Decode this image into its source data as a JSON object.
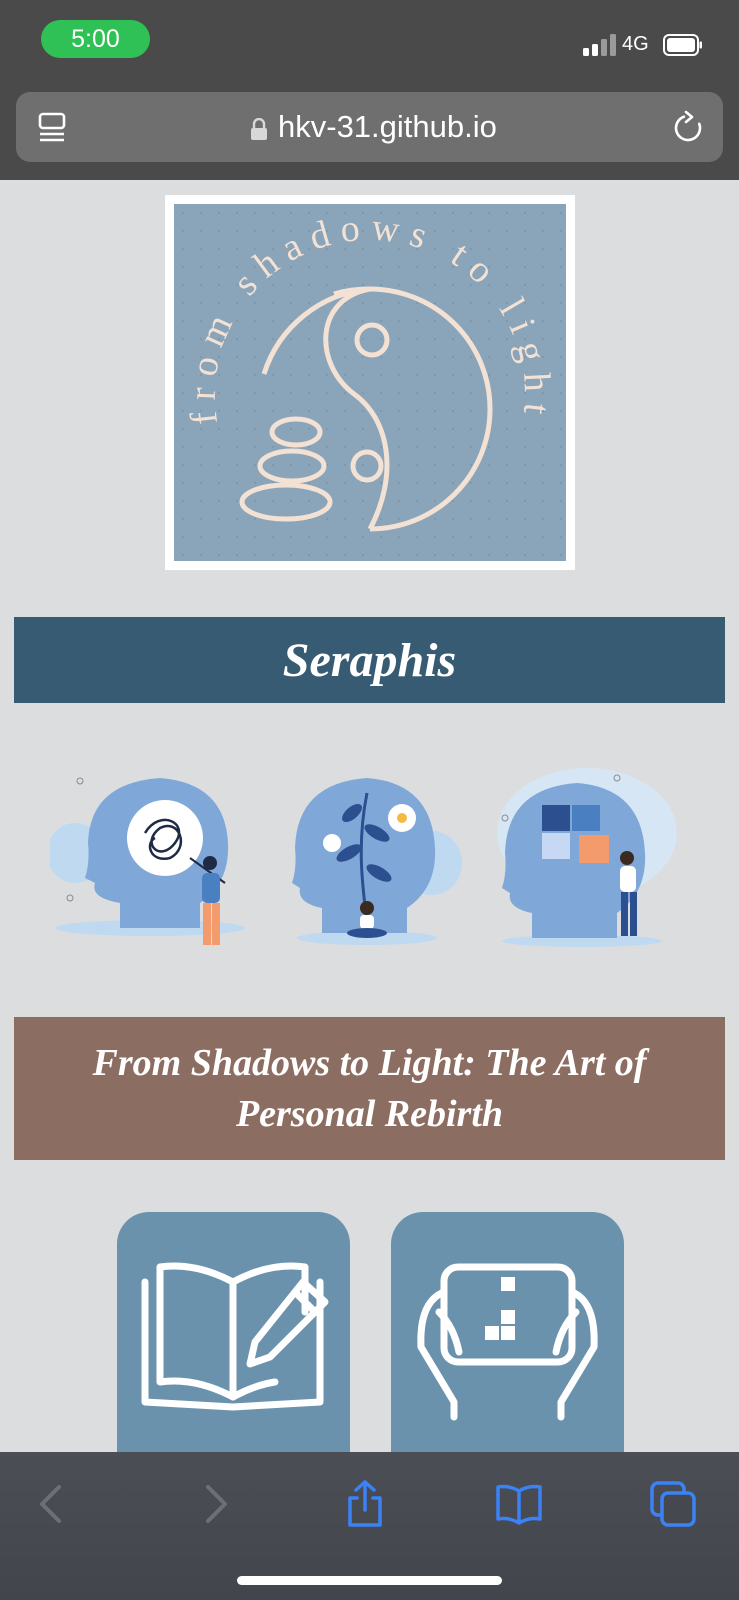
{
  "status_bar": {
    "time": "5:00",
    "network": "4G"
  },
  "browser": {
    "url": "hkv-31.github.io",
    "icons": [
      "tabs-icon",
      "lock-icon",
      "reload-icon"
    ]
  },
  "page": {
    "logo_text": "from shadows to light",
    "title": "Seraphis",
    "subtitle": "From Shadows to Light: The Art of Personal Rebirth",
    "illustrations": [
      "tangled-thoughts-head",
      "blooming-head-meditation",
      "puzzle-head"
    ],
    "cards": [
      {
        "icon": "journal-icon"
      },
      {
        "icon": "tablet-game-icon"
      }
    ]
  },
  "toolbar": {
    "items": [
      "back",
      "forward",
      "share",
      "bookmarks",
      "tabs"
    ]
  },
  "colors": {
    "title_banner": "#385b74",
    "subtitle_banner": "#8c6d61",
    "card": "#6b92ad",
    "logo_bg": "#8aa4b9",
    "accent_blue": "#3b82f6"
  }
}
